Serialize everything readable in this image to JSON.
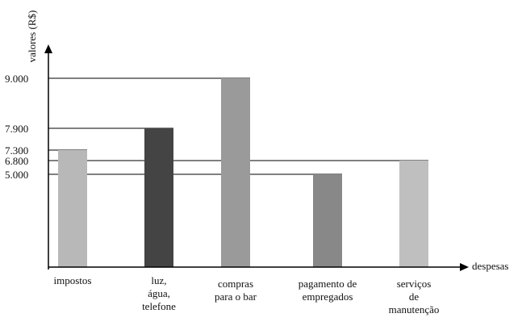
{
  "chart_data": {
    "type": "bar",
    "title": "",
    "xlabel": "despesas",
    "ylabel": "valores (R$)",
    "ylim": [
      0,
      9000
    ],
    "y_ticks": [
      {
        "value": 5000,
        "label": "5.000"
      },
      {
        "value": 6800,
        "label": "6.800"
      },
      {
        "value": 7300,
        "label": "7.300"
      },
      {
        "value": 7900,
        "label": "7.900"
      },
      {
        "value": 9000,
        "label": "9.000"
      }
    ],
    "categories": [
      [
        "impostos"
      ],
      [
        "luz,",
        "água,",
        "telefone"
      ],
      [
        "compras",
        "para o bar"
      ],
      [
        "pagamento de",
        "empregados"
      ],
      [
        "serviços",
        "de",
        "manutenção"
      ]
    ],
    "values": [
      7300,
      7900,
      9000,
      5000,
      6800
    ],
    "bar_colors": [
      "#b8b8b8",
      "#444444",
      "#9a9a9a",
      "#888888",
      "#bfbfbf"
    ],
    "grid": false
  }
}
